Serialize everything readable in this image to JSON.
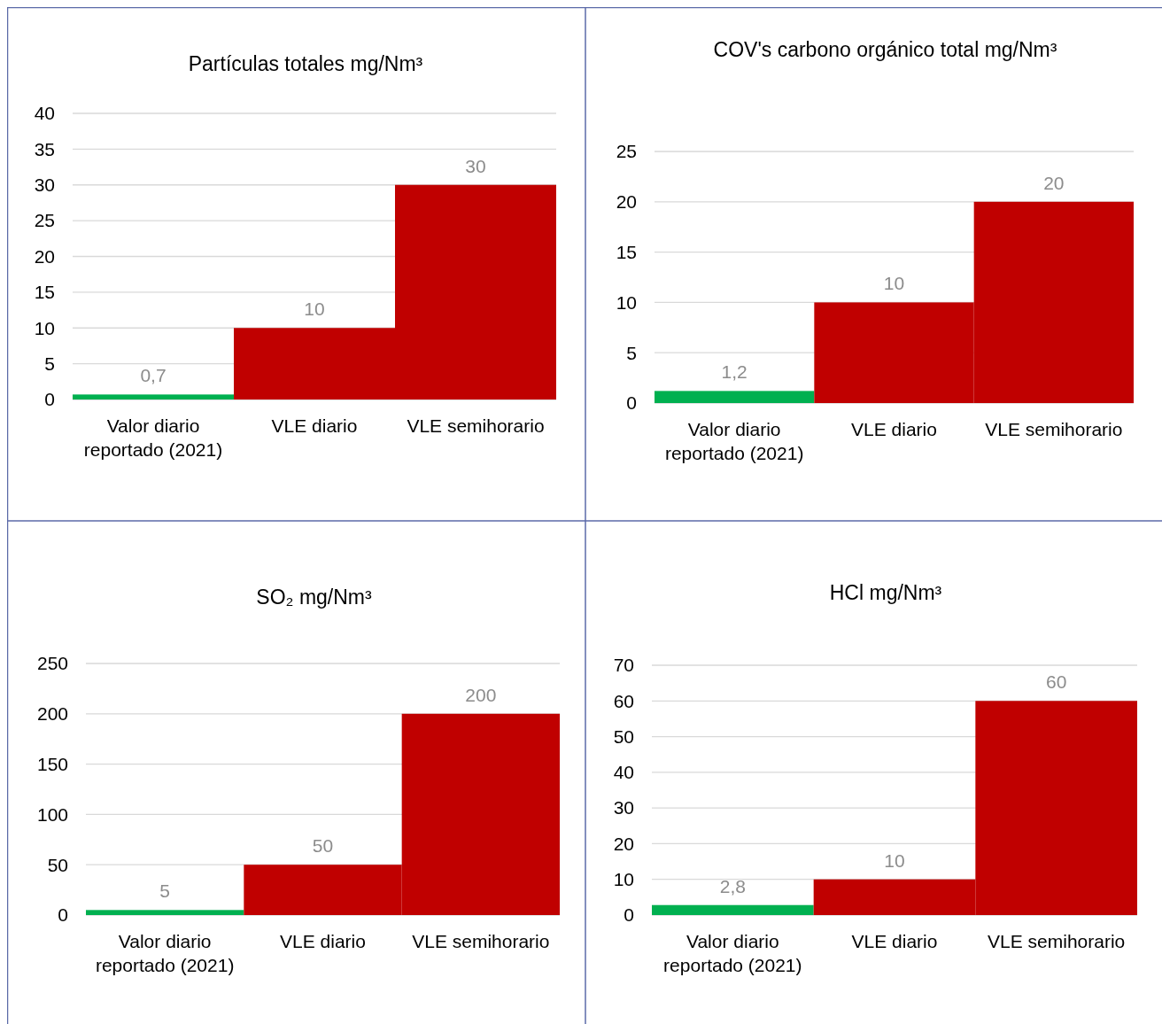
{
  "chart_data": [
    {
      "type": "bar",
      "title": "Partículas totales mg/Nm³",
      "categories": [
        "Valor diario reportado (2021)",
        "VLE diario",
        "VLE semihorario"
      ],
      "values": [
        0.7,
        10,
        30
      ],
      "value_labels": [
        "0,7",
        "10",
        "30"
      ],
      "colors": [
        "#00b050",
        "#c00000",
        "#c00000"
      ],
      "ylim": [
        0,
        40
      ],
      "yticks": [
        0,
        5,
        10,
        15,
        20,
        25,
        30,
        35,
        40
      ],
      "grid": "y"
    },
    {
      "type": "bar",
      "title": "COV's carbono orgánico total mg/Nm³",
      "categories": [
        "Valor diario reportado (2021)",
        "VLE diario",
        "VLE semihorario"
      ],
      "values": [
        1.2,
        10,
        20
      ],
      "value_labels": [
        "1,2",
        "10",
        "20"
      ],
      "colors": [
        "#00b050",
        "#c00000",
        "#c00000"
      ],
      "ylim": [
        0,
        25
      ],
      "yticks": [
        0,
        5,
        10,
        15,
        20,
        25
      ],
      "grid": "y"
    },
    {
      "type": "bar",
      "title": "SO₂ mg/Nm³",
      "categories": [
        "Valor diario reportado (2021)",
        "VLE diario",
        "VLE semihorario"
      ],
      "values": [
        5,
        50,
        200
      ],
      "value_labels": [
        "5",
        "50",
        "200"
      ],
      "colors": [
        "#00b050",
        "#c00000",
        "#c00000"
      ],
      "ylim": [
        0,
        250
      ],
      "yticks": [
        0,
        50,
        100,
        150,
        200,
        250
      ],
      "grid": "y"
    },
    {
      "type": "bar",
      "title": "HCl mg/Nm³",
      "categories": [
        "Valor diario reportado (2021)",
        "VLE diario",
        "VLE semihorario"
      ],
      "values": [
        2.8,
        10,
        60
      ],
      "value_labels": [
        "2,8",
        "10",
        "60"
      ],
      "colors": [
        "#00b050",
        "#c00000",
        "#c00000"
      ],
      "ylim": [
        0,
        70
      ],
      "yticks": [
        0,
        10,
        20,
        30,
        40,
        50,
        60,
        70
      ],
      "grid": "y"
    }
  ]
}
